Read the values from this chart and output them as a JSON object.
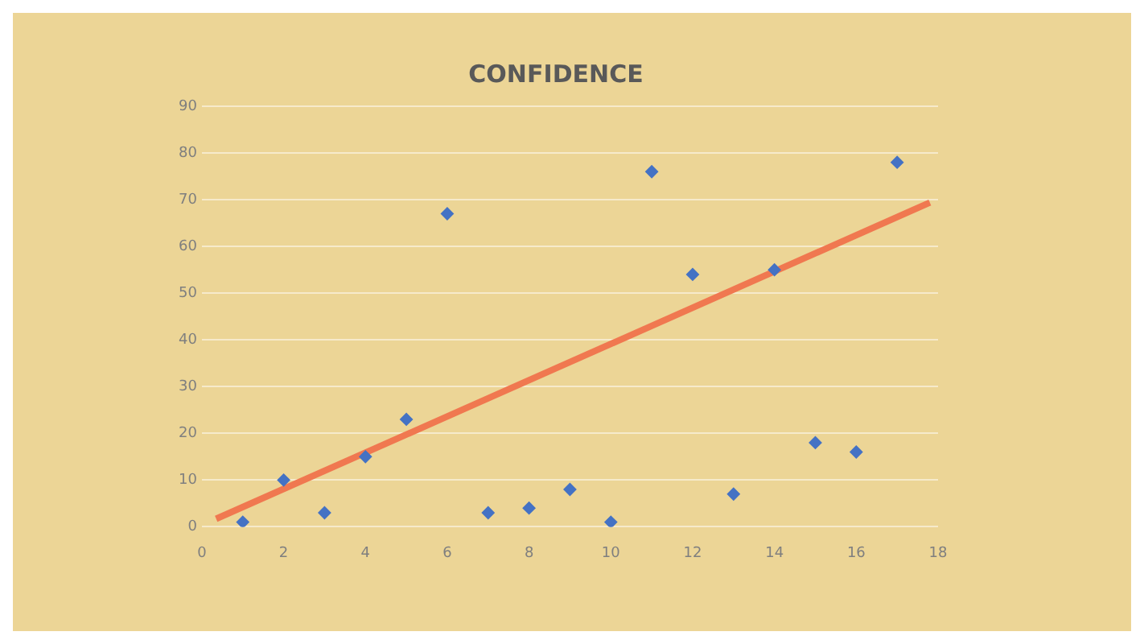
{
  "chart_data": {
    "type": "scatter",
    "title": "CONFIDENCE",
    "xlim": [
      0,
      18
    ],
    "xticks": [
      0,
      2,
      4,
      6,
      8,
      10,
      12,
      14,
      16,
      18
    ],
    "ylim": [
      0,
      90
    ],
    "yticks": [
      0,
      10,
      20,
      30,
      40,
      50,
      60,
      70,
      80,
      90
    ],
    "grid": "y",
    "series": [
      {
        "marker": "diamond",
        "color": "#4472c4",
        "x": [
          1,
          2,
          3,
          4,
          5,
          6,
          7,
          8,
          9,
          10,
          11,
          12,
          13,
          14,
          15,
          16,
          17
        ],
        "values": [
          1,
          10,
          3,
          15,
          23,
          67,
          3,
          4,
          8,
          1,
          76,
          54,
          7,
          55,
          18,
          16,
          78
        ]
      },
      {
        "type": "line",
        "marker": "none",
        "color": "#f07850",
        "x": [
          0.35,
          17.8
        ],
        "values": [
          1.7,
          69.4
        ]
      }
    ]
  }
}
